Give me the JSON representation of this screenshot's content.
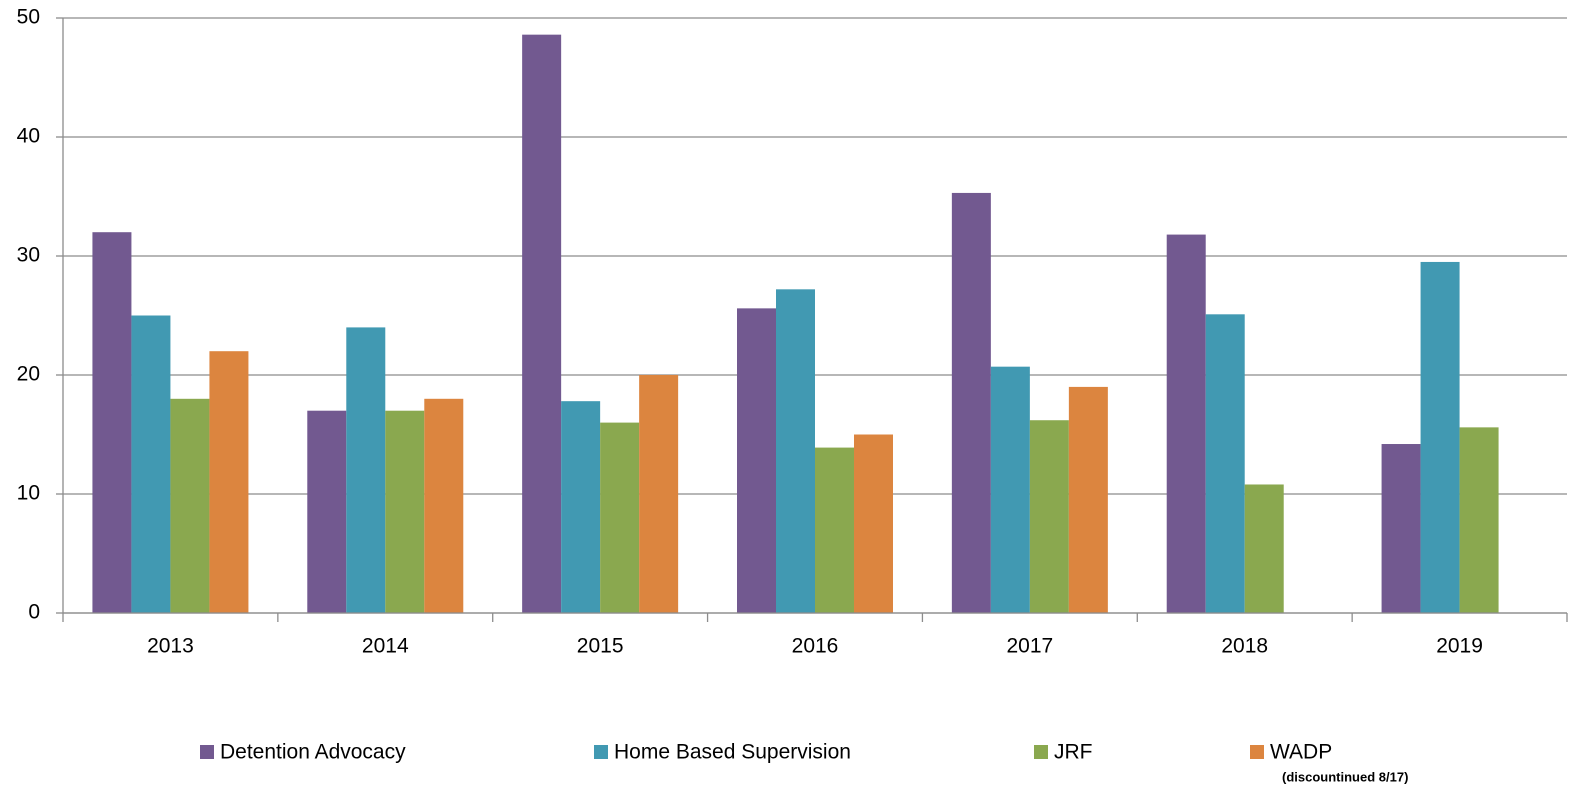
{
  "chart_data": {
    "type": "bar",
    "categories": [
      "2013",
      "2014",
      "2015",
      "2016",
      "2017",
      "2018",
      "2019"
    ],
    "series": [
      {
        "name": "Detention Advocacy",
        "color": "#725990",
        "values": [
          32,
          17,
          48.6,
          25.6,
          35.3,
          31.8,
          14.2
        ]
      },
      {
        "name": "Home Based Supervision",
        "color": "#4199b2",
        "values": [
          25,
          24,
          17.8,
          27.2,
          20.7,
          25.1,
          29.5
        ]
      },
      {
        "name": "JRF",
        "color": "#8aa84f",
        "values": [
          18,
          17,
          16,
          13.9,
          16.2,
          10.8,
          15.6
        ]
      },
      {
        "name": "WADP",
        "color": "#dc853f",
        "values": [
          22,
          18,
          20,
          15,
          19,
          null,
          null
        ]
      }
    ],
    "legend_annotation": "(discountinued 8/17)",
    "ylim": [
      0,
      50
    ],
    "yticks": [
      0,
      10,
      20,
      30,
      40,
      50
    ],
    "grid": true,
    "legend": "bottom"
  }
}
